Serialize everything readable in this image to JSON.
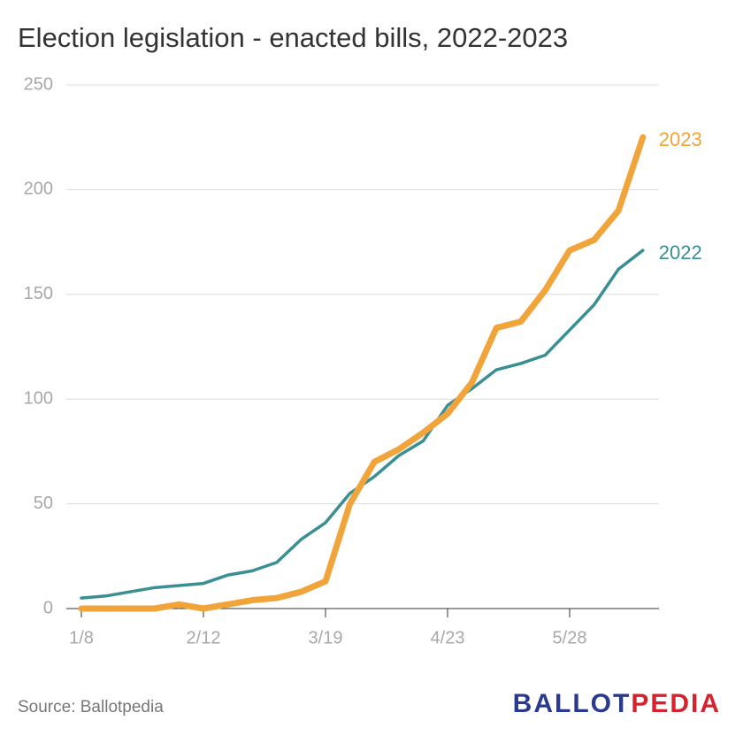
{
  "chart_data": {
    "type": "line",
    "title": "Election legislation - enacted bills, 2022-2023",
    "source": "Source: Ballotpedia",
    "logo": [
      "BALLOT",
      "PEDIA"
    ],
    "categories": [
      "1/8",
      null,
      null,
      null,
      null,
      "2/12",
      null,
      null,
      null,
      null,
      "3/19",
      null,
      null,
      null,
      null,
      "4/23",
      null,
      null,
      null,
      null,
      "5/28",
      null,
      null,
      null
    ],
    "series": [
      {
        "name": "2022",
        "color": "#3a8f94",
        "values": [
          5,
          6,
          8,
          10,
          11,
          12,
          16,
          18,
          22,
          33,
          41,
          55,
          63,
          73,
          80,
          97,
          105,
          114,
          117,
          121,
          133,
          145,
          162,
          171
        ]
      },
      {
        "name": "2023",
        "color": "#f0a43a",
        "values": [
          0,
          0,
          0,
          0,
          2,
          0,
          2,
          4,
          5,
          8,
          13,
          50,
          70,
          76,
          84,
          93,
          108,
          134,
          137,
          152,
          171,
          176,
          190,
          225
        ]
      }
    ],
    "ylim": [
      0,
      250
    ],
    "yticks": [
      0,
      50,
      100,
      150,
      200,
      250
    ],
    "grid": true
  }
}
